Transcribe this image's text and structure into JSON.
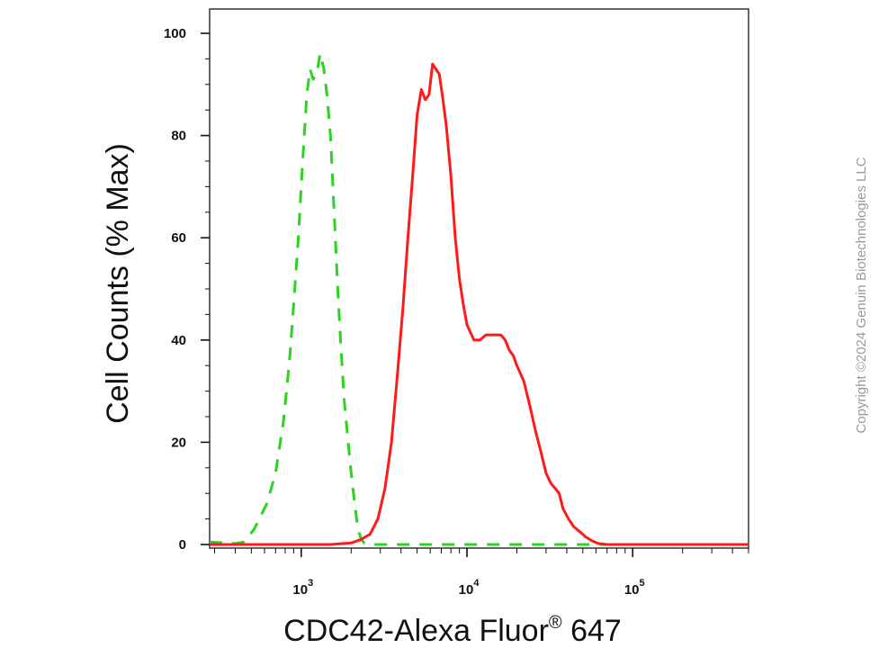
{
  "chart_data": {
    "type": "line",
    "title": "",
    "xlabel": "CDC42-Alexa Fluor",
    "xlabel_mark": "®",
    "xlabel_suffix": " 647",
    "ylabel": "Cell Counts (% Max)",
    "xscale": "log",
    "xlim": [
      280,
      500000
    ],
    "ylim": [
      0,
      105
    ],
    "yticks": [
      0,
      20,
      40,
      60,
      80,
      100
    ],
    "xticks": [
      1000,
      10000,
      100000
    ],
    "xtick_labels": [
      {
        "base": "10",
        "exp": "3"
      },
      {
        "base": "10",
        "exp": "4"
      },
      {
        "base": "10",
        "exp": "5"
      }
    ],
    "grid": false,
    "series": [
      {
        "color": "#2ad41f",
        "dash": "dashed",
        "x": [
          280,
          400,
          450,
          520,
          620,
          700,
          780,
          850,
          900,
          960,
          1020,
          1080,
          1130,
          1180,
          1240,
          1300,
          1370,
          1430,
          1500,
          1580,
          1660,
          1740,
          1820,
          1920,
          2000,
          2100,
          2200,
          2300,
          2400,
          2600,
          3000,
          5000,
          10000,
          50000,
          100000,
          500000
        ],
        "y": [
          0.5,
          0.2,
          0.5,
          3,
          8,
          14,
          24,
          36,
          47,
          60,
          75,
          88,
          93,
          91,
          92,
          96,
          93,
          88,
          80,
          65,
          50,
          38,
          28,
          20,
          14,
          8,
          3,
          1,
          0.3,
          0,
          0,
          0,
          0,
          0,
          0,
          0
        ]
      },
      {
        "color": "#ff1a1a",
        "dash": "solid",
        "x": [
          280,
          1500,
          2000,
          2300,
          2600,
          2900,
          3200,
          3500,
          3800,
          4100,
          4400,
          4700,
          5000,
          5300,
          5600,
          5900,
          6200,
          6500,
          6800,
          7100,
          7500,
          8000,
          8500,
          9000,
          9500,
          10000,
          11000,
          12000,
          13000,
          14000,
          15000,
          16000,
          17000,
          18000,
          19000,
          20000,
          22000,
          24000,
          26000,
          28000,
          30000,
          32000,
          34000,
          36000,
          38000,
          41000,
          44000,
          48000,
          52000,
          57000,
          62000,
          70000,
          80000,
          100000,
          500000
        ],
        "y": [
          0,
          0,
          0.3,
          1,
          2,
          5,
          11,
          20,
          33,
          46,
          60,
          72,
          84,
          89,
          87,
          88,
          94,
          93,
          92,
          88,
          82,
          72,
          60,
          52,
          47,
          43,
          40,
          40,
          41,
          41,
          41,
          41,
          40,
          38,
          37,
          35,
          32,
          27,
          22,
          18,
          14,
          12,
          11,
          10,
          7,
          5,
          3.5,
          2.5,
          1.5,
          0.7,
          0.2,
          0,
          0,
          0,
          0
        ]
      }
    ]
  },
  "copyright": "Copyright ©2024 Genuin Biotechnologies LLC",
  "colors": {
    "axis": "#111111",
    "frame": "#333333",
    "copyright": "#9a9a9a"
  }
}
